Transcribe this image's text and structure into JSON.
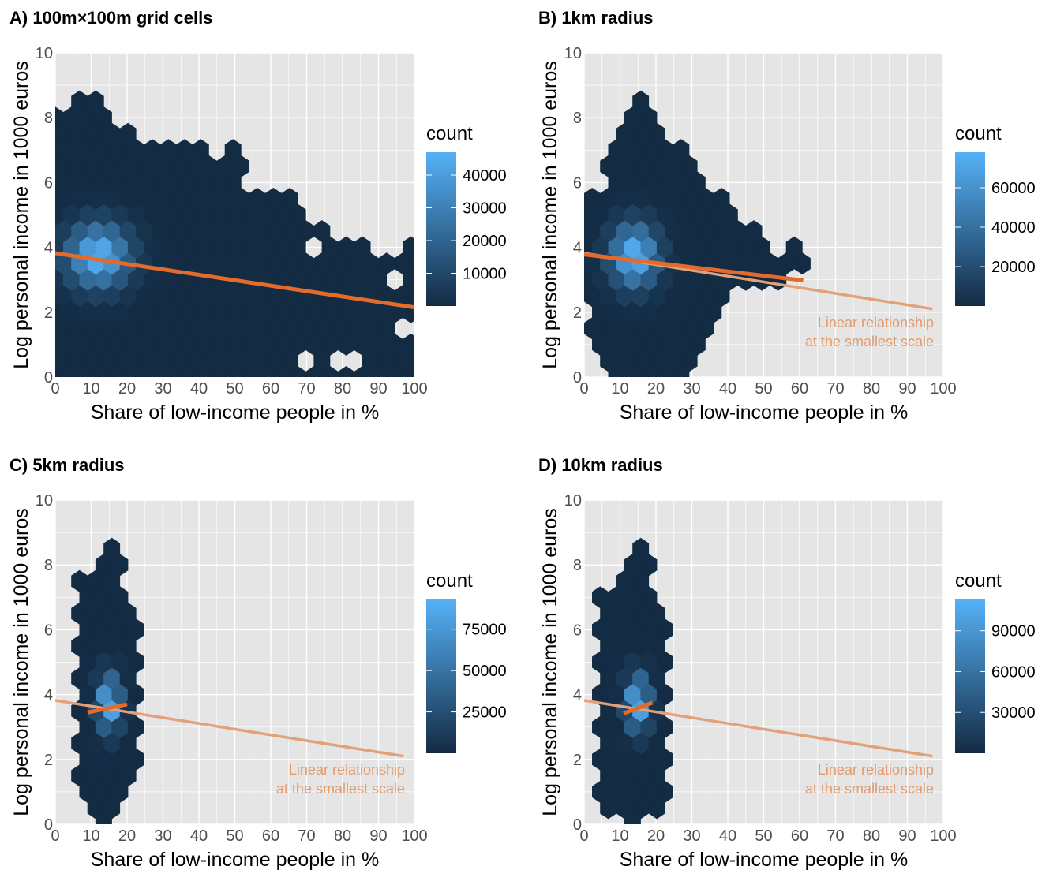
{
  "figure": {
    "background": "#ffffff",
    "panel_bg": "#e5e5e5",
    "grid_color": "#ffffff",
    "low_color": "#132b43",
    "high_color": "#56b1f7",
    "fit_color": "#e36b2c",
    "ref_color": "#e3a17a"
  },
  "chart_data": [
    {
      "type": "hexbin",
      "title": "A) 100m×100m grid cells",
      "xlabel": "Share of low-income people in %",
      "ylabel": "Log personal income in 1000 euros",
      "xlim": [
        0,
        100
      ],
      "ylim": [
        0,
        10
      ],
      "x_ticks": [
        0,
        10,
        20,
        30,
        40,
        50,
        60,
        70,
        80,
        90,
        100
      ],
      "y_ticks": [
        0,
        2,
        4,
        6,
        8,
        10
      ],
      "legend": {
        "title": "count",
        "ticks": [
          10000,
          20000,
          30000,
          40000
        ],
        "max": 47000
      },
      "extent": [
        [
          0,
          0,
          8
        ],
        [
          5,
          0,
          8.5
        ],
        [
          10,
          0,
          8.8
        ],
        [
          15,
          0,
          8
        ],
        [
          20,
          0,
          7.6
        ],
        [
          25,
          0,
          7.3
        ],
        [
          30,
          0,
          7.4
        ],
        [
          35,
          0,
          7.2
        ],
        [
          40,
          0,
          7.2
        ],
        [
          45,
          0,
          6.6
        ],
        [
          50,
          0,
          7.1
        ],
        [
          55,
          0,
          5.6
        ],
        [
          60,
          0,
          5.4
        ],
        [
          65,
          0,
          5.8
        ],
        [
          70,
          0,
          4.8
        ],
        [
          75,
          0,
          4.6
        ],
        [
          80,
          0,
          4.3
        ],
        [
          85,
          0,
          4.0
        ],
        [
          90,
          0,
          3.6
        ],
        [
          95,
          0,
          3.9
        ],
        [
          100,
          0,
          4.4
        ]
      ],
      "holes": [
        [
          72,
          3.9
        ],
        [
          68,
          0.5
        ],
        [
          81,
          0.7
        ],
        [
          96,
          3.0
        ],
        [
          99,
          1.5
        ]
      ],
      "hotspot": {
        "x": 12,
        "y": 3.75,
        "sx": 8,
        "sy": 0.9
      },
      "fit": {
        "x": [
          0,
          100
        ],
        "y": [
          3.82,
          2.15
        ]
      },
      "reference": null,
      "annotation": []
    },
    {
      "type": "hexbin",
      "title": "B) 1km radius",
      "xlabel": "Share of low-income people in %",
      "ylabel": "Log personal income in 1000 euros",
      "xlim": [
        0,
        100
      ],
      "ylim": [
        0,
        10
      ],
      "x_ticks": [
        0,
        10,
        20,
        30,
        40,
        50,
        60,
        70,
        80,
        90,
        100
      ],
      "y_ticks": [
        0,
        2,
        4,
        6,
        8,
        10
      ],
      "legend": {
        "title": "count",
        "ticks": [
          20000,
          40000,
          60000
        ],
        "max": 78000
      },
      "extent": [
        [
          0,
          2.4,
          5
        ],
        [
          5,
          0,
          6
        ],
        [
          10,
          0,
          8
        ],
        [
          15,
          0,
          9.2
        ],
        [
          20,
          0,
          8.5
        ],
        [
          25,
          0,
          7.3
        ],
        [
          30,
          0.1,
          6.9
        ],
        [
          35,
          1.2,
          6.0
        ],
        [
          40,
          2.4,
          5.7
        ],
        [
          45,
          2.8,
          4.6
        ],
        [
          50,
          2.8,
          4.4
        ],
        [
          55,
          2.8,
          3.5
        ],
        [
          60,
          3.4,
          4.4
        ]
      ],
      "holes": [],
      "hotspot": {
        "x": 14,
        "y": 3.75,
        "sx": 6,
        "sy": 0.9
      },
      "fit": {
        "x": [
          0,
          61
        ],
        "y": [
          3.78,
          2.98
        ]
      },
      "reference": {
        "x": [
          0,
          97
        ],
        "y": [
          3.82,
          2.1
        ]
      },
      "annotation": [
        "Linear relationship",
        "at the smallest scale"
      ]
    },
    {
      "type": "hexbin",
      "title": "C) 5km radius",
      "xlabel": "Share of low-income people in %",
      "ylabel": "Log personal income in 1000 euros",
      "xlim": [
        0,
        100
      ],
      "ylim": [
        0,
        10
      ],
      "x_ticks": [
        0,
        10,
        20,
        30,
        40,
        50,
        60,
        70,
        80,
        90,
        100
      ],
      "y_ticks": [
        0,
        2,
        4,
        6,
        8,
        10
      ],
      "legend": {
        "title": "count",
        "ticks": [
          25000,
          50000,
          75000
        ],
        "max": 93000
      },
      "extent": [
        [
          8,
          1.2,
          7.6
        ],
        [
          12,
          0,
          8.2
        ],
        [
          17,
          0,
          8.7
        ],
        [
          22,
          1.2,
          6.5
        ]
      ],
      "holes": [],
      "hotspot": {
        "x": 15,
        "y": 3.75,
        "sx": 3,
        "sy": 0.8
      },
      "fit": {
        "x": [
          9,
          20
        ],
        "y": [
          3.45,
          3.7
        ]
      },
      "reference": {
        "x": [
          0,
          97
        ],
        "y": [
          3.82,
          2.1
        ]
      },
      "annotation": [
        "Linear relationship",
        "at the smallest scale"
      ]
    },
    {
      "type": "hexbin",
      "title": "D) 10km radius",
      "xlabel": "Share of low-income people in %",
      "ylabel": "Log personal income in 1000 euros",
      "xlim": [
        0,
        100
      ],
      "ylim": [
        0,
        10
      ],
      "x_ticks": [
        0,
        10,
        20,
        30,
        40,
        50,
        60,
        70,
        80,
        90,
        100
      ],
      "y_ticks": [
        0,
        2,
        4,
        6,
        8,
        10
      ],
      "legend": {
        "title": "count",
        "ticks": [
          30000,
          60000,
          90000
        ],
        "max": 113000
      },
      "extent": [
        [
          7,
          0.5,
          7.0
        ],
        [
          12,
          0,
          8.1
        ],
        [
          17,
          0,
          9.2
        ],
        [
          22,
          0.6,
          6.3
        ]
      ],
      "holes": [],
      "hotspot": {
        "x": 15,
        "y": 3.75,
        "sx": 3,
        "sy": 0.8
      },
      "fit": {
        "x": [
          11,
          19
        ],
        "y": [
          3.42,
          3.75
        ]
      },
      "reference": {
        "x": [
          0,
          97
        ],
        "y": [
          3.82,
          2.1
        ]
      },
      "annotation": [
        "Linear relationship",
        "at the smallest scale"
      ]
    }
  ]
}
